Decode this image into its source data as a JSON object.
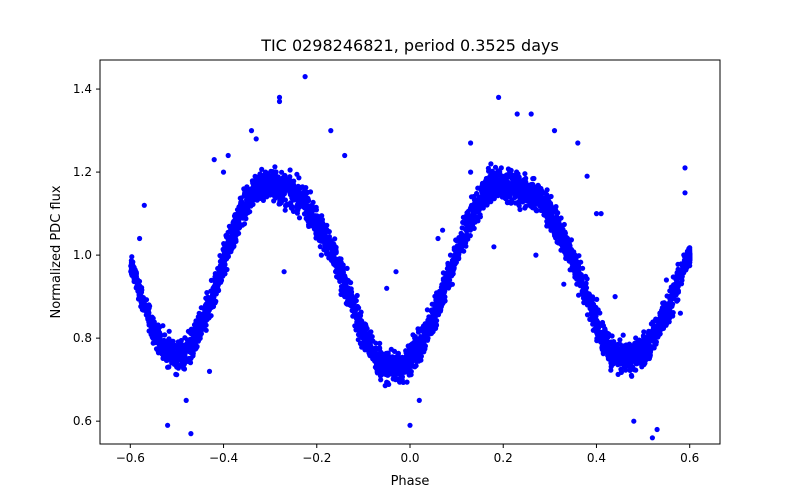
{
  "chart_data": {
    "type": "scatter",
    "title": "TIC 0298246821, period 0.3525 days",
    "xlabel": "Phase",
    "ylabel": "Normalized PDC flux",
    "xlim": [
      -0.665,
      0.665
    ],
    "ylim": [
      0.545,
      1.47
    ],
    "x_ticks": [
      -0.6,
      -0.4,
      -0.2,
      0.0,
      0.2,
      0.4,
      0.6
    ],
    "x_tick_labels": [
      "−0.6",
      "−0.4",
      "−0.2",
      "0.0",
      "0.2",
      "0.4",
      "0.6"
    ],
    "y_ticks": [
      0.6,
      0.8,
      1.0,
      1.2,
      1.4
    ],
    "y_tick_labels": [
      "0.6",
      "0.8",
      "1.0",
      "1.2",
      "1.4"
    ],
    "grid": false,
    "legend": "none",
    "marker_color": "#0000ff",
    "series": [
      {
        "x": [
          -0.6,
          -0.59,
          -0.58,
          -0.57,
          -0.56,
          -0.55,
          -0.54,
          -0.53,
          -0.52,
          -0.51,
          -0.5,
          -0.49,
          -0.48,
          -0.47,
          -0.46,
          -0.45,
          -0.44,
          -0.43,
          -0.42,
          -0.41,
          -0.4,
          -0.39,
          -0.38,
          -0.37,
          -0.36,
          -0.35,
          -0.34,
          -0.33,
          -0.32,
          -0.31,
          -0.3,
          -0.29,
          -0.28,
          -0.27,
          -0.26,
          -0.25,
          -0.24,
          -0.23,
          -0.22,
          -0.21,
          -0.2,
          -0.19,
          -0.18,
          -0.17,
          -0.16,
          -0.15,
          -0.14,
          -0.13,
          -0.12,
          -0.11,
          -0.1,
          -0.09,
          -0.08,
          -0.07,
          -0.06,
          -0.05,
          -0.04,
          -0.03,
          -0.02,
          -0.01,
          0.0,
          0.01,
          0.02,
          0.03,
          0.04,
          0.05,
          0.06,
          0.07,
          0.08,
          0.09,
          0.1,
          0.11,
          0.12,
          0.13,
          0.14,
          0.15,
          0.16,
          0.17,
          0.18,
          0.19,
          0.2,
          0.21,
          0.22,
          0.23,
          0.24,
          0.25,
          0.26,
          0.27,
          0.28,
          0.29,
          0.3,
          0.31,
          0.32,
          0.33,
          0.34,
          0.35,
          0.36,
          0.37,
          0.38,
          0.39,
          0.4,
          0.41,
          0.42,
          0.43,
          0.44,
          0.45,
          0.46,
          0.47,
          0.48,
          0.49,
          0.5,
          0.51,
          0.52,
          0.53,
          0.54,
          0.55,
          0.56,
          0.57,
          0.58,
          0.59,
          0.6
        ],
        "y": [
          0.98,
          0.95,
          0.91,
          0.88,
          0.85,
          0.82,
          0.8,
          0.78,
          0.77,
          0.76,
          0.76,
          0.76,
          0.77,
          0.78,
          0.8,
          0.82,
          0.85,
          0.88,
          0.91,
          0.95,
          0.98,
          1.02,
          1.05,
          1.08,
          1.11,
          1.13,
          1.15,
          1.16,
          1.17,
          1.17,
          1.17,
          1.17,
          1.16,
          1.16,
          1.15,
          1.15,
          1.14,
          1.13,
          1.12,
          1.1,
          1.08,
          1.06,
          1.04,
          1.01,
          0.99,
          0.96,
          0.93,
          0.9,
          0.87,
          0.84,
          0.81,
          0.79,
          0.77,
          0.75,
          0.74,
          0.73,
          0.73,
          0.73,
          0.73,
          0.74,
          0.75,
          0.76,
          0.78,
          0.8,
          0.82,
          0.85,
          0.88,
          0.91,
          0.94,
          0.97,
          1.0,
          1.03,
          1.06,
          1.09,
          1.11,
          1.13,
          1.15,
          1.16,
          1.17,
          1.17,
          1.17,
          1.17,
          1.17,
          1.16,
          1.16,
          1.15,
          1.15,
          1.14,
          1.13,
          1.12,
          1.1,
          1.08,
          1.06,
          1.04,
          1.01,
          0.99,
          0.96,
          0.93,
          0.9,
          0.87,
          0.84,
          0.81,
          0.79,
          0.77,
          0.76,
          0.75,
          0.75,
          0.75,
          0.76,
          0.76,
          0.77,
          0.78,
          0.8,
          0.82,
          0.84,
          0.86,
          0.89,
          0.92,
          0.95,
          0.98,
          1.0
        ],
        "scatter_halfwidth": [
          0.03,
          0.03,
          0.03,
          0.03,
          0.04,
          0.04,
          0.04,
          0.05,
          0.05,
          0.05,
          0.05,
          0.05,
          0.05,
          0.05,
          0.05,
          0.05,
          0.05,
          0.05,
          0.05,
          0.05,
          0.05,
          0.05,
          0.05,
          0.05,
          0.05,
          0.05,
          0.05,
          0.05,
          0.05,
          0.05,
          0.05,
          0.05,
          0.05,
          0.05,
          0.05,
          0.05,
          0.05,
          0.05,
          0.05,
          0.05,
          0.05,
          0.05,
          0.05,
          0.05,
          0.05,
          0.05,
          0.05,
          0.05,
          0.05,
          0.05,
          0.05,
          0.05,
          0.05,
          0.05,
          0.05,
          0.05,
          0.05,
          0.05,
          0.05,
          0.05,
          0.05,
          0.05,
          0.05,
          0.05,
          0.05,
          0.05,
          0.05,
          0.05,
          0.05,
          0.05,
          0.05,
          0.05,
          0.05,
          0.05,
          0.05,
          0.05,
          0.05,
          0.05,
          0.05,
          0.05,
          0.05,
          0.05,
          0.05,
          0.05,
          0.05,
          0.05,
          0.05,
          0.05,
          0.05,
          0.05,
          0.05,
          0.05,
          0.05,
          0.05,
          0.05,
          0.05,
          0.05,
          0.05,
          0.05,
          0.05,
          0.05,
          0.05,
          0.05,
          0.05,
          0.05,
          0.05,
          0.05,
          0.05,
          0.05,
          0.05,
          0.05,
          0.05,
          0.05,
          0.05,
          0.05,
          0.05,
          0.05,
          0.05,
          0.04,
          0.04,
          0.03
        ],
        "points_per_bin": 34,
        "outliers": [
          [
            -0.225,
            1.43
          ],
          [
            -0.28,
            1.38
          ],
          [
            -0.28,
            1.37
          ],
          [
            -0.34,
            1.3
          ],
          [
            -0.33,
            1.28
          ],
          [
            -0.17,
            1.3
          ],
          [
            -0.14,
            1.24
          ],
          [
            -0.39,
            1.24
          ],
          [
            -0.42,
            1.23
          ],
          [
            -0.4,
            1.2
          ],
          [
            -0.57,
            1.12
          ],
          [
            -0.58,
            1.04
          ],
          [
            -0.56,
            0.88
          ],
          [
            -0.53,
            0.83
          ],
          [
            -0.52,
            0.59
          ],
          [
            -0.47,
            0.57
          ],
          [
            -0.43,
            0.72
          ],
          [
            -0.48,
            0.65
          ],
          [
            -0.14,
            0.9
          ],
          [
            -0.05,
            0.92
          ],
          [
            -0.03,
            0.96
          ],
          [
            0.01,
            0.8
          ],
          [
            0.02,
            0.65
          ],
          [
            0.0,
            0.59
          ],
          [
            0.07,
            1.06
          ],
          [
            0.06,
            1.04
          ],
          [
            0.13,
            1.27
          ],
          [
            0.13,
            1.2
          ],
          [
            0.19,
            1.38
          ],
          [
            0.23,
            1.34
          ],
          [
            0.26,
            1.34
          ],
          [
            0.31,
            1.3
          ],
          [
            0.36,
            1.27
          ],
          [
            0.38,
            1.19
          ],
          [
            0.4,
            1.1
          ],
          [
            0.41,
            1.1
          ],
          [
            0.44,
            0.9
          ],
          [
            0.48,
            0.6
          ],
          [
            0.52,
            0.56
          ],
          [
            0.53,
            0.58
          ],
          [
            0.54,
            0.84
          ],
          [
            0.59,
            1.21
          ],
          [
            0.59,
            1.15
          ],
          [
            0.58,
            0.86
          ],
          [
            0.55,
            0.94
          ],
          [
            -0.27,
            0.96
          ],
          [
            -0.19,
            1.0
          ],
          [
            0.27,
            1.0
          ],
          [
            0.33,
            0.93
          ],
          [
            0.18,
            1.02
          ]
        ]
      }
    ]
  }
}
